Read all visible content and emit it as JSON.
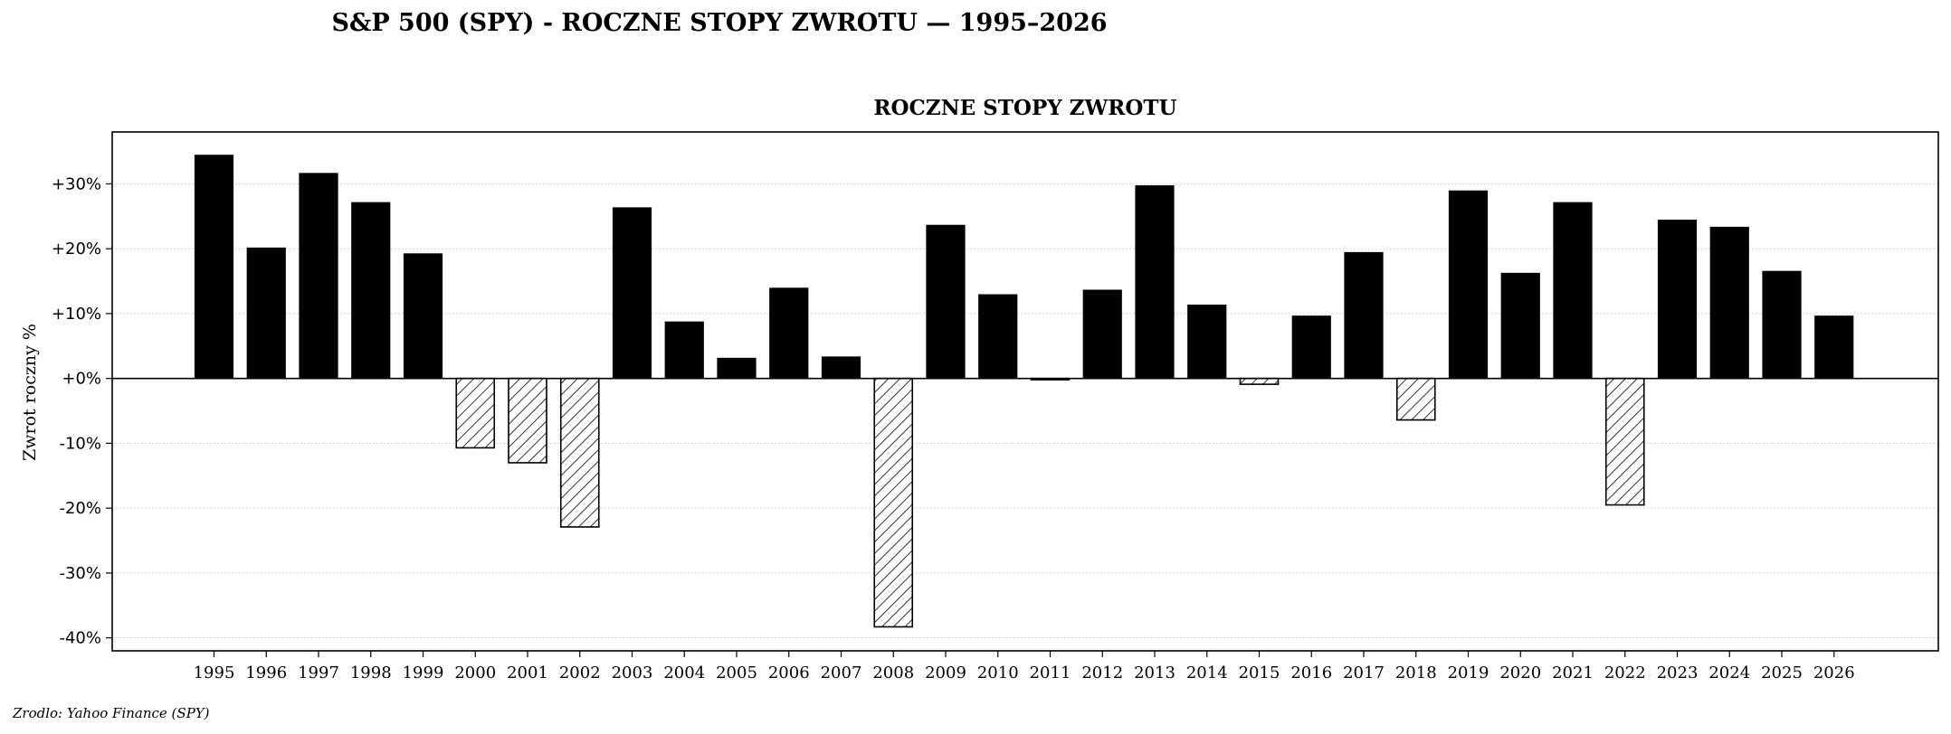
{
  "figure_title": "S&P 500 (SPY) - ROCZNE STOPY ZWROTU — 1995–2026",
  "source_note": "Zrodlo: Yahoo Finance (SPY)",
  "colors": {
    "positive": "#000000",
    "negative_fill": "#ffffff",
    "negative_hatch": "#000000",
    "grid": "#cccccc"
  },
  "chart_data": {
    "type": "bar",
    "title": "ROCZNE STOPY ZWROTU",
    "xlabel": "",
    "ylabel": "Zwrot roczny %",
    "ylim": [
      -42,
      38
    ],
    "yticks": [
      -40,
      -30,
      -20,
      -10,
      0,
      10,
      20,
      30
    ],
    "ytick_labels": [
      "-40%",
      "-30%",
      "-20%",
      "-10%",
      "+0%",
      "+10%",
      "+20%",
      "+30%"
    ],
    "grid": true,
    "categories": [
      "1995",
      "1996",
      "1997",
      "1998",
      "1999",
      "2000",
      "2001",
      "2002",
      "2003",
      "2004",
      "2005",
      "2006",
      "2007",
      "2008",
      "2009",
      "2010",
      "2011",
      "2012",
      "2013",
      "2014",
      "2015",
      "2016",
      "2017",
      "2018",
      "2019",
      "2020",
      "2021",
      "2022",
      "2023",
      "2024",
      "2025",
      "2026"
    ],
    "values": [
      34.4,
      20.1,
      31.6,
      27.1,
      19.2,
      -10.7,
      -13.0,
      -22.9,
      26.3,
      8.7,
      3.1,
      13.9,
      3.3,
      -38.3,
      23.6,
      12.9,
      -0.2,
      13.6,
      29.7,
      11.3,
      -0.9,
      9.6,
      19.4,
      -6.4,
      28.9,
      16.2,
      27.1,
      -19.5,
      24.4,
      23.3,
      16.5,
      9.6
    ]
  }
}
